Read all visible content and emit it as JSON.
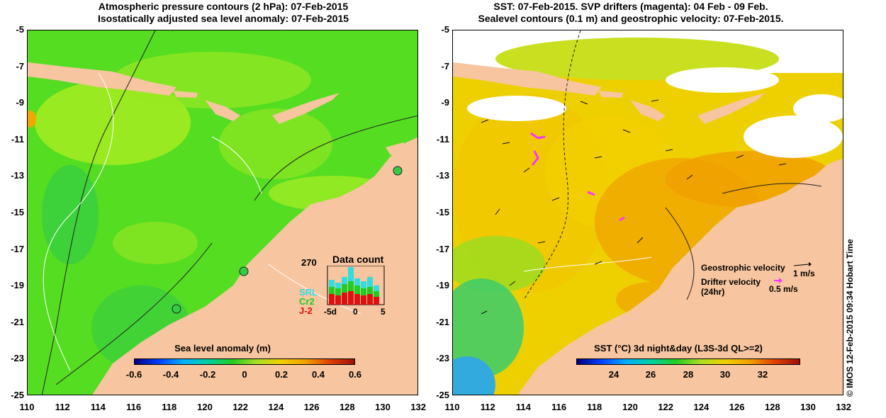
{
  "left": {
    "title_line1": "Atmospheric pressure contours (2 hPa): 07-Feb-2015",
    "title_line2": "Isostatically adjusted sea level anomaly: 07-Feb-2015",
    "y_ticks": [
      "-5",
      "-7",
      "-9",
      "-11",
      "-13",
      "-15",
      "-17",
      "-19",
      "-21",
      "-23",
      "-25"
    ],
    "x_ticks": [
      "110",
      "112",
      "114",
      "116",
      "118",
      "120",
      "122",
      "124",
      "126",
      "128",
      "130",
      "132"
    ],
    "colorbar_label": "Sea level anomaly (m)",
    "colorbar_ticks": [
      "-0.6",
      "-0.4",
      "-0.2",
      "0",
      "0.2",
      "0.4",
      "0.6"
    ],
    "colorbar_range": [
      -0.6,
      0.6
    ],
    "data_count": {
      "title": "Data count",
      "max_label": "270",
      "x_ticks": [
        "-5d",
        "0",
        "5"
      ],
      "satellites": [
        {
          "name": "SRL",
          "color": "#33dddd"
        },
        {
          "name": "Cr2",
          "color": "#22cc22"
        },
        {
          "name": "J-2",
          "color": "#dd1111"
        }
      ]
    }
  },
  "right": {
    "title_line1": "SST: 07-Feb-2015. SVP drifters (magenta): 04 Feb - 09 Feb.",
    "title_line2": "Sealevel contours (0.1 m) and geostrophic velocity: 07-Feb-2015.",
    "y_ticks": [
      "-5",
      "-7",
      "-9",
      "-11",
      "-13",
      "-15",
      "-17",
      "-19",
      "-21",
      "-23",
      "-25"
    ],
    "x_ticks": [
      "110",
      "112",
      "114",
      "116",
      "118",
      "120",
      "122",
      "124",
      "126",
      "128",
      "130",
      "132"
    ],
    "colorbar_label": "SST (°C) 3d night&day (L3S-3d QL>=2)",
    "colorbar_ticks": [
      "24",
      "26",
      "28",
      "30",
      "32"
    ],
    "colorbar_range": [
      22,
      34
    ],
    "legend": {
      "geo_label": "Geostrophic velocity",
      "geo_scale": "1 m/s",
      "drifter_label": "Drifter velocity",
      "drifter_period": "(24hr)",
      "drifter_scale": "0.5 m/s"
    }
  },
  "credit": "© IMOS 12-Feb-2015 09:34 Hobart Time",
  "colors": {
    "land": "#f7c59f",
    "ocean_green": "#55dd22",
    "ocean_yellowgreen": "#aaee22",
    "sst_orange": "#f0a800",
    "sst_yellow": "#f2d000",
    "drifter_magenta": "#ff33ff"
  }
}
